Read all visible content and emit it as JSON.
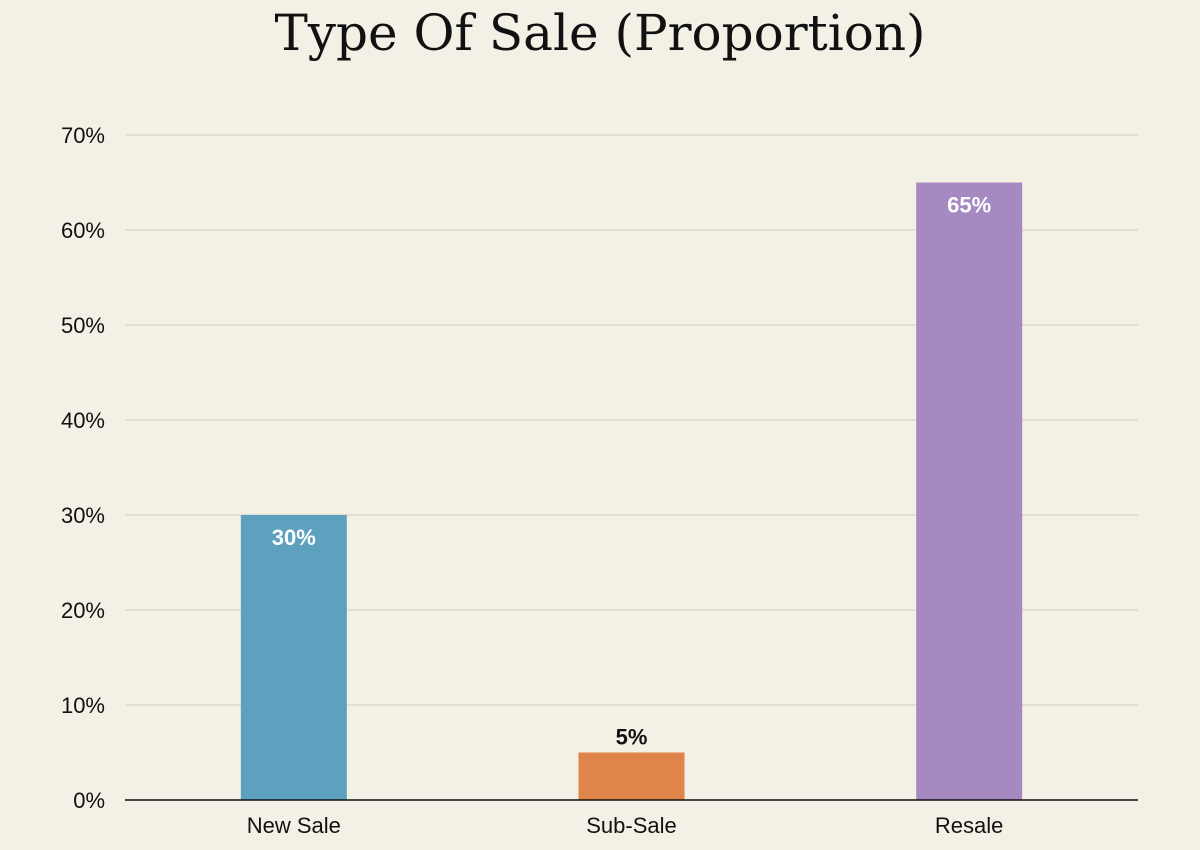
{
  "chart_data": {
    "type": "bar",
    "title": "Type Of Sale (Proportion)",
    "xlabel": "",
    "ylabel": "",
    "categories": [
      "New Sale",
      "Sub-Sale",
      "Resale"
    ],
    "values": [
      30,
      5,
      65
    ],
    "data_labels": [
      "30%",
      "5%",
      "65%"
    ],
    "bar_colors": [
      "#5ea1bf",
      "#e0854a",
      "#a789c2"
    ],
    "data_label_colors": [
      "#ffffff",
      "#111111",
      "#ffffff"
    ],
    "data_label_position": [
      "inside",
      "outside",
      "inside"
    ],
    "ylim": [
      0,
      70
    ],
    "yticks": [
      0,
      10,
      20,
      30,
      40,
      50,
      60,
      70
    ],
    "ytick_labels": [
      "0%",
      "10%",
      "20%",
      "30%",
      "40%",
      "50%",
      "60%",
      "70%"
    ],
    "grid": true,
    "legend": "none"
  },
  "colors": {
    "background": "#f3f0e5",
    "grid": "#dcd8cc",
    "axis": "#111111",
    "text": "#111111"
  }
}
